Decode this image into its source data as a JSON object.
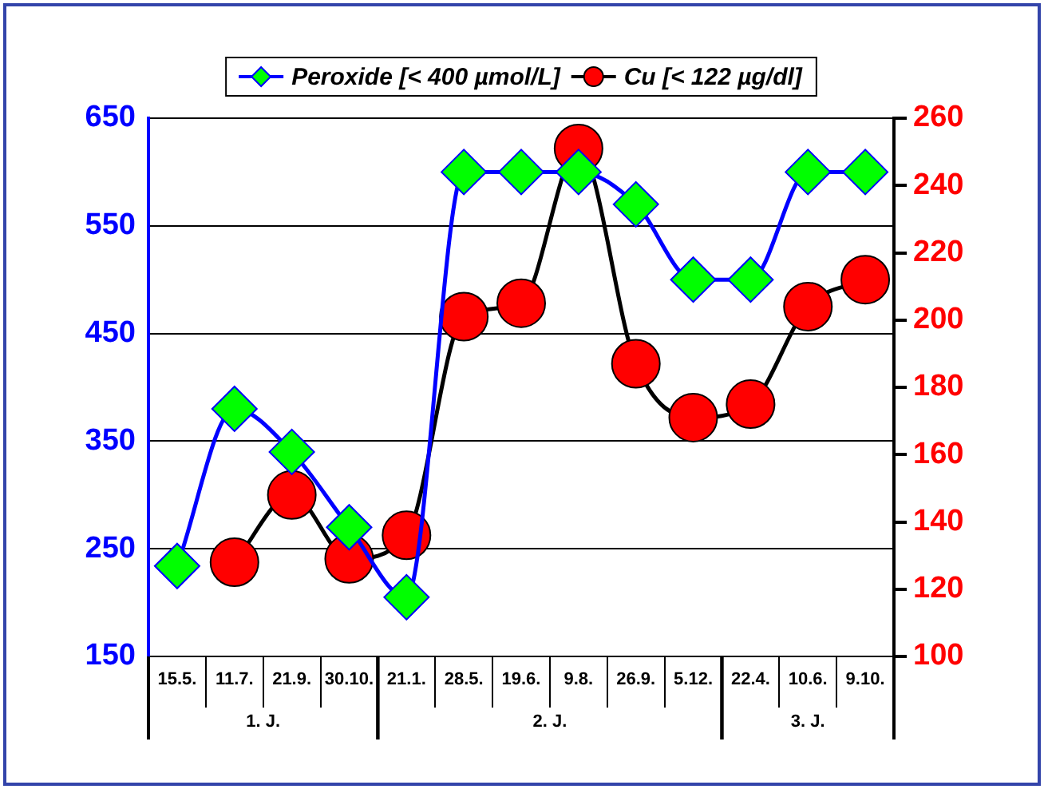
{
  "chart_data": {
    "type": "line",
    "categories": [
      "15.5.",
      "11.7.",
      "21.9.",
      "30.10.",
      "21.1.",
      "28.5.",
      "19.6.",
      "9.8.",
      "26.9.",
      "5.12.",
      "22.4.",
      "10.6.",
      "9.10."
    ],
    "series": [
      {
        "name": "Peroxide [< 400 µmol/L]",
        "color": "#00ff00",
        "marker": "diamond",
        "values": [
          234,
          380,
          340,
          270,
          205,
          600,
          600,
          600,
          570,
          500,
          500,
          600,
          600
        ]
      },
      {
        "name": "Cu [< 122 µg/dl]",
        "color": "#ff0000",
        "marker": "circle",
        "axis": "y2",
        "values": [
          null,
          128,
          148,
          129,
          136,
          201,
          205,
          251,
          187,
          171,
          175,
          204,
          212
        ]
      }
    ],
    "ylim": [
      150,
      650
    ],
    "yticks": [
      150,
      250,
      350,
      450,
      550,
      650
    ],
    "y2lim": [
      100,
      260
    ],
    "y2ticks": [
      100,
      120,
      140,
      160,
      180,
      200,
      220,
      240,
      260
    ],
    "grid": "y",
    "legend": "top",
    "annotations": [
      "1. J.",
      "2. J.",
      "3. J."
    ]
  }
}
